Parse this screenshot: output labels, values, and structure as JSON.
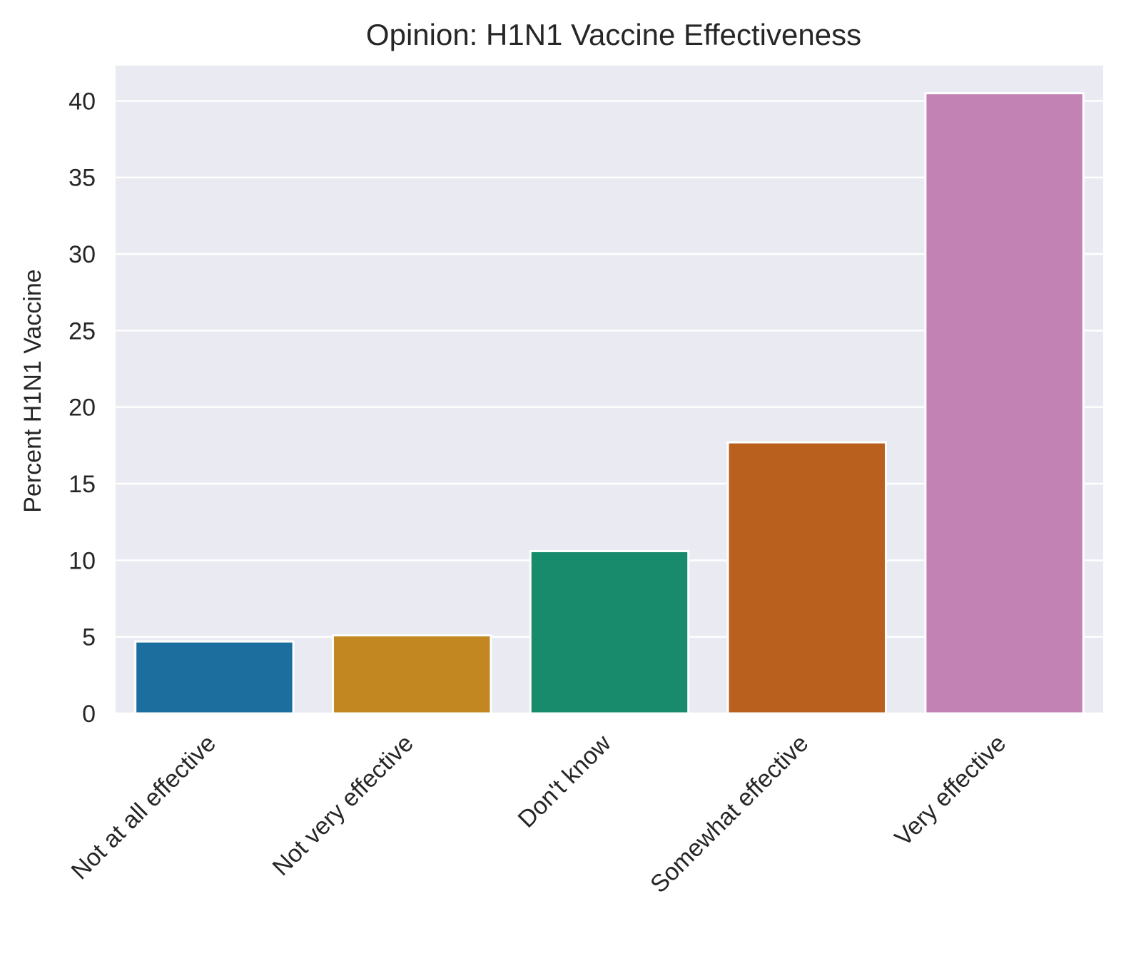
{
  "chart_data": {
    "type": "bar",
    "title": "Opinion: H1N1 Vaccine Effectiveness",
    "xlabel": "",
    "ylabel": "Percent H1N1 Vaccine",
    "categories": [
      "Not at all effective",
      "Not very effective",
      "Don't know",
      "Somewhat effective",
      "Very effective"
    ],
    "values": [
      4.7,
      5.1,
      10.6,
      17.7,
      40.5
    ],
    "colors": [
      "#1b6e9e",
      "#c28720",
      "#178b6c",
      "#b9601e",
      "#c283b4"
    ],
    "ylim": [
      0,
      42.3
    ],
    "yticks": [
      0,
      5,
      10,
      15,
      20,
      25,
      30,
      35,
      40
    ],
    "ytick_labels": [
      "0",
      "5",
      "10",
      "15",
      "20",
      "25",
      "30",
      "35",
      "40"
    ],
    "grid": true,
    "background": "#eaeaf2",
    "grid_color": "#ffffff",
    "text_color": "#262626"
  }
}
